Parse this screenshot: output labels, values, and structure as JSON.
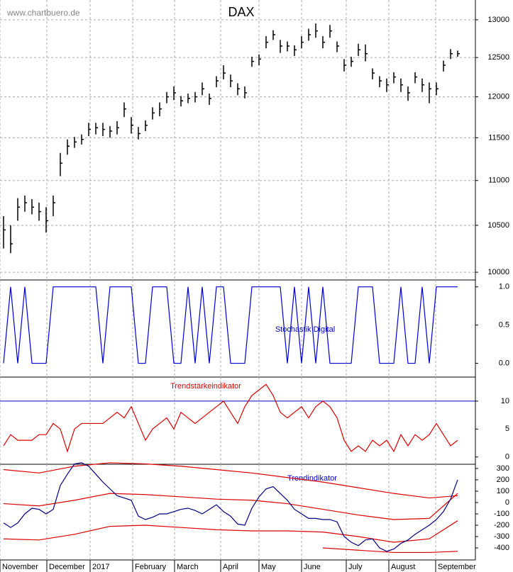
{
  "source": "www.chartbuero.de",
  "chart_data": [
    {
      "type": "ohlc",
      "title": "DAX",
      "log_scale": true,
      "grid": true,
      "color": "#000000",
      "ylim": [
        9920,
        13270
      ],
      "yticks": [
        10000,
        10500,
        11000,
        11500,
        12000,
        12500,
        13000
      ],
      "xlim": [
        -0.5,
        66.5
      ],
      "high": [
        10600,
        10500,
        10800,
        10830,
        10790,
        10750,
        10700,
        10830,
        11320,
        11480,
        11510,
        11540,
        11680,
        11680,
        11680,
        11640,
        11700,
        11930,
        11750,
        11630,
        11710,
        11870,
        11930,
        12060,
        12130,
        12010,
        12040,
        12060,
        12180,
        12040,
        12260,
        12400,
        12280,
        12170,
        12130,
        12510,
        12540,
        12780,
        12860,
        12730,
        12710,
        12660,
        12780,
        12880,
        12950,
        12780,
        12930,
        12710,
        12480,
        12510,
        12680,
        12670,
        12360,
        12260,
        12230,
        12310,
        12230,
        12130,
        12310,
        12230,
        12180,
        12180,
        12460,
        12610,
        12590
      ],
      "low": [
        10250,
        10200,
        10550,
        10650,
        10620,
        10550,
        10420,
        10600,
        11050,
        11300,
        11380,
        11420,
        11520,
        11540,
        11520,
        11500,
        11540,
        11750,
        11550,
        11480,
        11580,
        11720,
        11760,
        11920,
        11960,
        11880,
        11920,
        11930,
        12020,
        11900,
        12120,
        12220,
        12120,
        12020,
        11980,
        12380,
        12400,
        12620,
        12730,
        12560,
        12580,
        12520,
        12620,
        12720,
        12760,
        12620,
        12760,
        12570,
        12320,
        12380,
        12520,
        12450,
        12220,
        12120,
        12060,
        12170,
        12060,
        11950,
        12170,
        12060,
        11920,
        12020,
        12320,
        12480,
        12510
      ],
      "close": [
        10450,
        10300,
        10700,
        10750,
        10700,
        10650,
        10550,
        10750,
        11200,
        11400,
        11450,
        11480,
        11600,
        11620,
        11600,
        11580,
        11620,
        11850,
        11650,
        11550,
        11650,
        11800,
        11850,
        12000,
        12050,
        11950,
        11980,
        12000,
        12100,
        11980,
        12200,
        12300,
        12200,
        12100,
        12050,
        12450,
        12480,
        12700,
        12800,
        12650,
        12650,
        12600,
        12700,
        12800,
        12850,
        12700,
        12850,
        12650,
        12400,
        12450,
        12600,
        12550,
        12300,
        12200,
        12150,
        12250,
        12150,
        12050,
        12250,
        12150,
        12100,
        12100,
        12400,
        12550,
        12550
      ]
    },
    {
      "type": "line",
      "label": "Stochastik Digital",
      "label_color": "#0000cc",
      "ylim": [
        -0.18,
        1.09
      ],
      "yticks": [
        {
          "value": 1,
          "label": "1.0"
        },
        0.5,
        {
          "value": 0,
          "label": "0.0"
        }
      ],
      "xlim": [
        -0.5,
        66.5
      ],
      "series": [
        {
          "color": "#0000cc",
          "values": [
            0,
            1,
            0,
            1,
            0,
            0,
            0,
            1,
            1,
            1,
            1,
            1,
            1,
            1,
            0,
            1,
            1,
            1,
            1,
            0,
            0,
            1,
            1,
            1,
            0,
            0,
            1,
            0,
            1,
            0,
            1,
            1,
            0,
            0,
            0,
            1,
            1,
            1,
            1,
            1,
            0,
            1,
            0,
            1,
            0,
            1,
            0,
            0,
            0,
            0,
            1,
            1,
            1,
            0,
            0,
            0,
            1,
            0,
            0,
            1,
            0,
            1,
            1,
            1,
            1
          ]
        }
      ]
    },
    {
      "type": "line",
      "label": "Trendstärkeindikator",
      "label_color": "#dd0000",
      "ylim": [
        -1.3,
        14.3
      ],
      "yticks": [
        10,
        5,
        0
      ],
      "xlim": [
        -0.5,
        66.5
      ],
      "hline": 10,
      "hline_color": "#0000cc",
      "series": [
        {
          "color": "#dd0000",
          "values": [
            2,
            4,
            3,
            3,
            3,
            4,
            4,
            6,
            5,
            1,
            5,
            6,
            6,
            6,
            6,
            7,
            8,
            7,
            9,
            6,
            3,
            5,
            6,
            7,
            5,
            8,
            7,
            6,
            7,
            8,
            9,
            10,
            8,
            6,
            9,
            11,
            12,
            13,
            11,
            8,
            7,
            8,
            9,
            7,
            9,
            10,
            9,
            7,
            3,
            1,
            2,
            1,
            3,
            2,
            3,
            1,
            4,
            2,
            4,
            3,
            4,
            6,
            4,
            2,
            3
          ]
        }
      ]
    },
    {
      "type": "line",
      "label": "Trendindikator",
      "label_color": "#0000cc",
      "ylim": [
        -506,
        337
      ],
      "yticks": [
        300,
        200,
        100,
        0,
        -100,
        -200,
        -300,
        -400
      ],
      "xlim": [
        -0.5,
        66.5
      ],
      "xticks": [
        {
          "value": -0.5,
          "label": "November"
        },
        {
          "value": 6.1,
          "label": "December"
        },
        {
          "value": 12.2,
          "label": "2017"
        },
        {
          "value": 18.2,
          "label": "February"
        },
        {
          "value": 24.1,
          "label": "March"
        },
        {
          "value": 30.6,
          "label": "April"
        },
        {
          "value": 36,
          "label": "May"
        },
        {
          "value": 42,
          "label": "June"
        },
        {
          "value": 48.3,
          "label": "July"
        },
        {
          "value": 54.3,
          "label": "August"
        },
        {
          "value": 60.9,
          "label": "September"
        }
      ],
      "series": [
        {
          "color": "#dd0000",
          "x": [
            0,
            5,
            10,
            15,
            20,
            25,
            30,
            35,
            40,
            45,
            50,
            55,
            60,
            64
          ],
          "values": [
            290,
            260,
            320,
            350,
            340,
            320,
            290,
            260,
            220,
            180,
            130,
            80,
            40,
            60
          ]
        },
        {
          "color": "#dd0000",
          "x": [
            0,
            5,
            10,
            15,
            20,
            25,
            30,
            35,
            40,
            45,
            50,
            55,
            60,
            64
          ],
          "values": [
            -10,
            -30,
            20,
            80,
            70,
            50,
            30,
            20,
            -10,
            -60,
            -110,
            -150,
            -140,
            80
          ]
        },
        {
          "color": "#dd0000",
          "x": [
            0,
            5,
            10,
            15,
            20,
            25,
            30,
            35,
            40,
            45,
            50,
            55,
            60,
            64
          ],
          "values": [
            -320,
            -330,
            -280,
            -210,
            -200,
            -220,
            -240,
            -250,
            -250,
            -260,
            -300,
            -350,
            -320,
            -160
          ]
        },
        {
          "color": "#dd0000",
          "x": [
            0,
            5,
            10,
            15,
            20,
            25,
            30,
            35,
            40,
            45,
            50,
            55,
            60,
            64
          ],
          "values": [
            null,
            null,
            null,
            null,
            null,
            null,
            null,
            null,
            null,
            -400,
            -420,
            -440,
            -440,
            -430
          ]
        },
        {
          "color": "#000080",
          "values": [
            -180,
            -220,
            -180,
            -100,
            -50,
            -60,
            -100,
            -60,
            150,
            250,
            340,
            350,
            320,
            250,
            180,
            120,
            60,
            40,
            20,
            -120,
            -150,
            -130,
            -100,
            -100,
            -80,
            -60,
            -50,
            -70,
            -100,
            -60,
            -20,
            -80,
            -120,
            -190,
            -200,
            -50,
            50,
            120,
            140,
            80,
            20,
            -60,
            -100,
            -140,
            -140,
            -150,
            -150,
            -170,
            -300,
            -350,
            -380,
            -330,
            -320,
            -400,
            -430,
            -410,
            -360,
            -330,
            -280,
            -240,
            -200,
            -150,
            -80,
            30,
            200
          ]
        }
      ]
    }
  ]
}
